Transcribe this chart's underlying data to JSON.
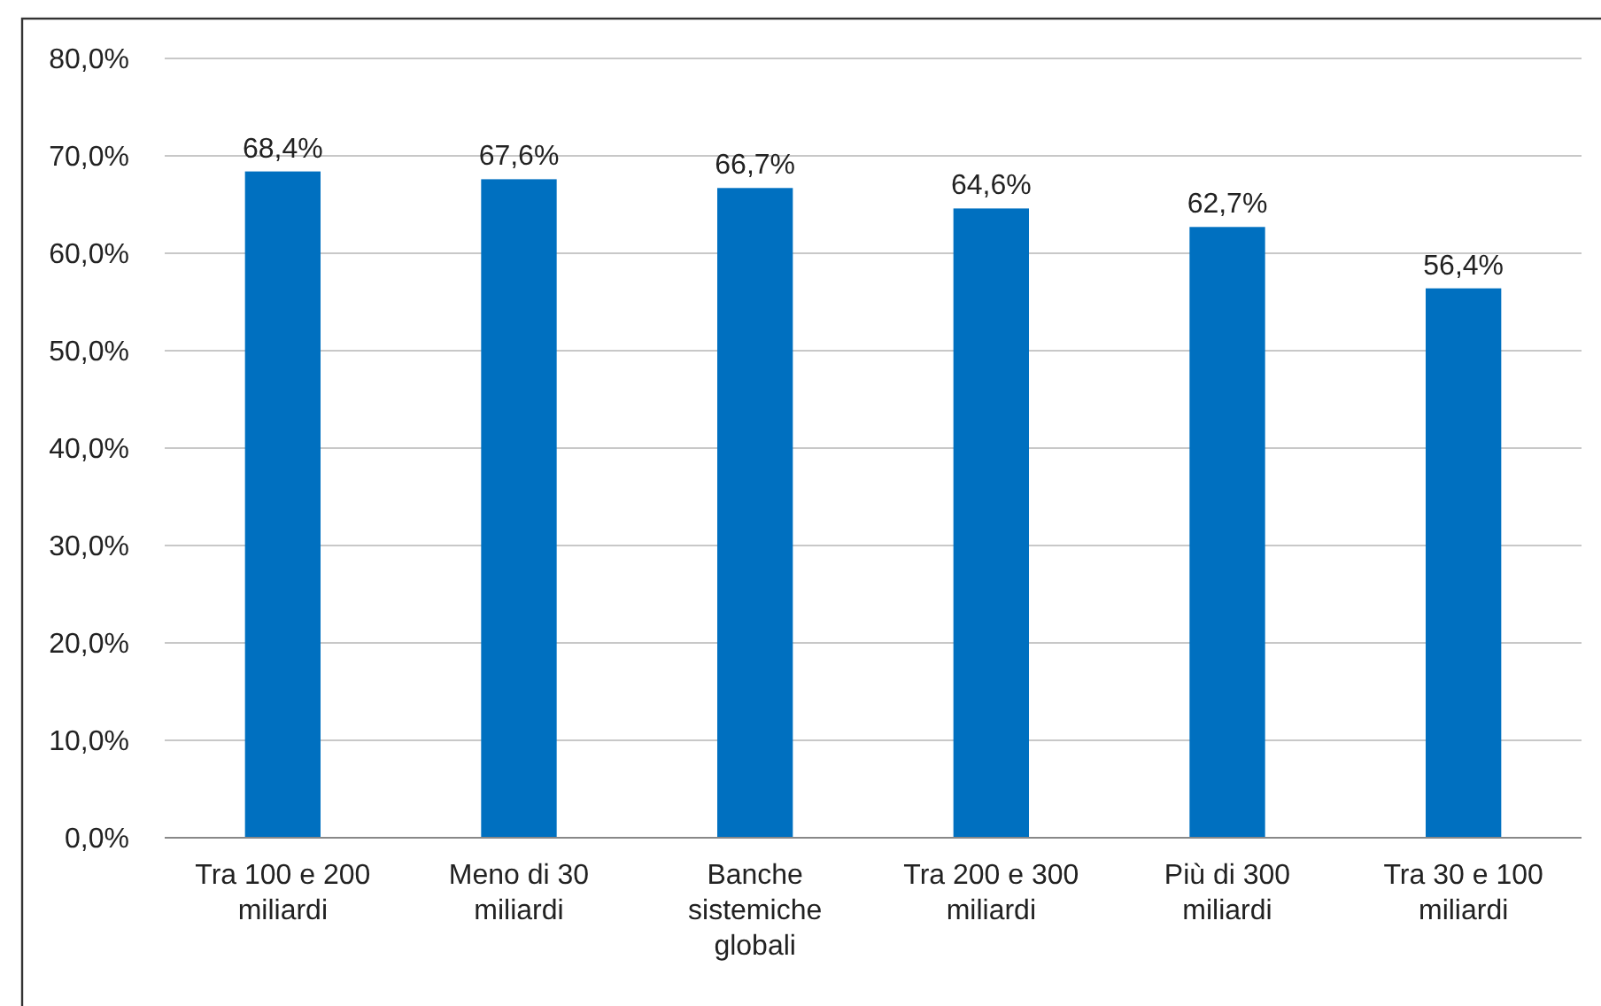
{
  "chart_data": {
    "type": "bar",
    "categories": [
      "Tra 100 e 200 miliardi",
      "Meno di 30 miliardi",
      "Banche sistemiche globali",
      "Tra 200 e 300 miliardi",
      "Più di 300 miliardi",
      "Tra 30 e 100 miliardi"
    ],
    "values": [
      68.4,
      67.6,
      66.7,
      64.6,
      62.7,
      56.4
    ],
    "value_labels": [
      "68,4%",
      "67,6%",
      "66,7%",
      "64,6%",
      "62,7%",
      "56,4%"
    ],
    "color": "#0070c0",
    "ylim": [
      0,
      80
    ],
    "yticks": [
      {
        "value": 0,
        "label": "0,0%"
      },
      {
        "value": 10,
        "label": "10,0%"
      },
      {
        "value": 20,
        "label": "20,0%"
      },
      {
        "value": 30,
        "label": "30,0%"
      },
      {
        "value": 40,
        "label": "40,0%"
      },
      {
        "value": 50,
        "label": "50,0%"
      },
      {
        "value": 60,
        "label": "60,0%"
      },
      {
        "value": 70,
        "label": "70,0%"
      },
      {
        "value": 80,
        "label": "80,0%"
      }
    ],
    "grid": "y"
  }
}
